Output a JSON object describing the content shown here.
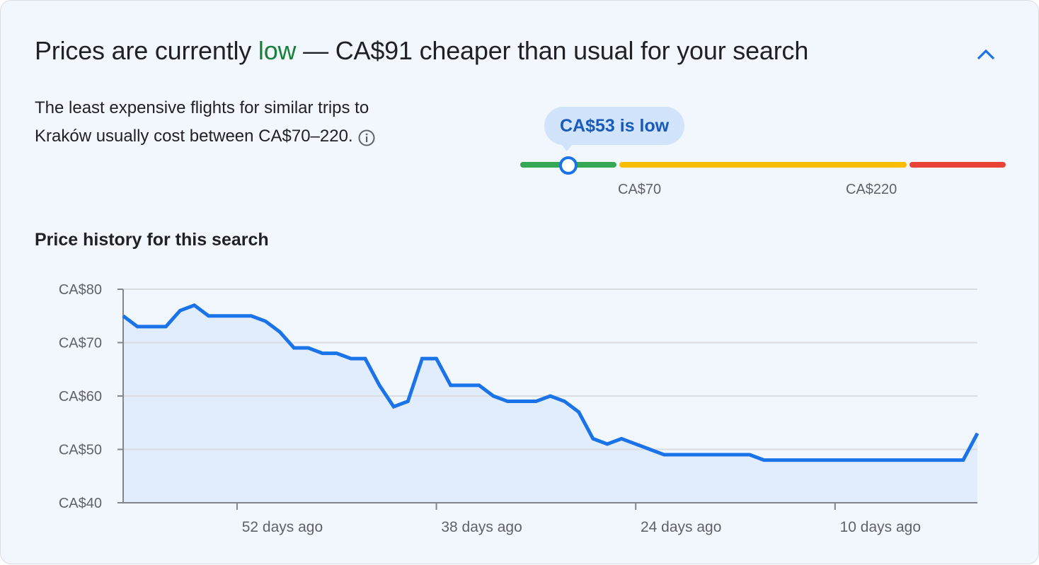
{
  "header": {
    "prefix": "Prices are currently ",
    "level_word": "low",
    "suffix": " — CA$91 cheaper than usual for your search",
    "collapse_icon": "chevron-up-icon"
  },
  "description": {
    "text": "The least expensive flights for similar trips to Kraków usually cost between CA$70–220.",
    "info_icon": "info-icon"
  },
  "price_range": {
    "current_label": "CA$53 is low",
    "current_value": 53,
    "low_threshold_label": "CA$70",
    "high_threshold_label": "CA$220",
    "colors": {
      "low": "#34a853",
      "typical": "#fbbc04",
      "high": "#ea4335",
      "marker": "#1a73e8"
    }
  },
  "history": {
    "title": "Price history for this search"
  },
  "chart_data": {
    "type": "area",
    "x_unit": "days ago",
    "x": [
      60,
      59,
      58,
      57,
      56,
      55,
      54,
      53,
      52,
      51,
      50,
      49,
      48,
      47,
      46,
      45,
      44,
      43,
      42,
      41,
      40,
      39,
      38,
      37,
      36,
      35,
      34,
      33,
      32,
      31,
      30,
      29,
      28,
      27,
      26,
      25,
      24,
      23,
      22,
      21,
      20,
      19,
      18,
      17,
      16,
      15,
      14,
      13,
      12,
      11,
      10,
      9,
      8,
      7,
      6,
      5,
      4,
      3,
      2,
      1,
      0
    ],
    "values": [
      75,
      73,
      73,
      73,
      76,
      77,
      75,
      75,
      75,
      75,
      74,
      72,
      69,
      69,
      68,
      68,
      67,
      67,
      62,
      58,
      59,
      67,
      67,
      62,
      62,
      62,
      60,
      59,
      59,
      59,
      60,
      59,
      57,
      52,
      51,
      52,
      51,
      50,
      49,
      49,
      49,
      49,
      49,
      49,
      49,
      48,
      48,
      48,
      48,
      48,
      48,
      48,
      48,
      48,
      48,
      48,
      48,
      48,
      48,
      48,
      53
    ],
    "ylim": [
      40,
      80
    ],
    "y_ticks": [
      {
        "v": 80,
        "label": "CA$80"
      },
      {
        "v": 70,
        "label": "CA$70"
      },
      {
        "v": 60,
        "label": "CA$60"
      },
      {
        "v": 50,
        "label": "CA$50"
      },
      {
        "v": 40,
        "label": "CA$40"
      }
    ],
    "x_ticks": [
      {
        "v": 52,
        "label": "52 days ago"
      },
      {
        "v": 38,
        "label": "38 days ago"
      },
      {
        "v": 24,
        "label": "24 days ago"
      },
      {
        "v": 10,
        "label": "10 days ago"
      }
    ],
    "grid": true,
    "line_color": "#1a73e8",
    "fill_color": "#e1edfc"
  }
}
